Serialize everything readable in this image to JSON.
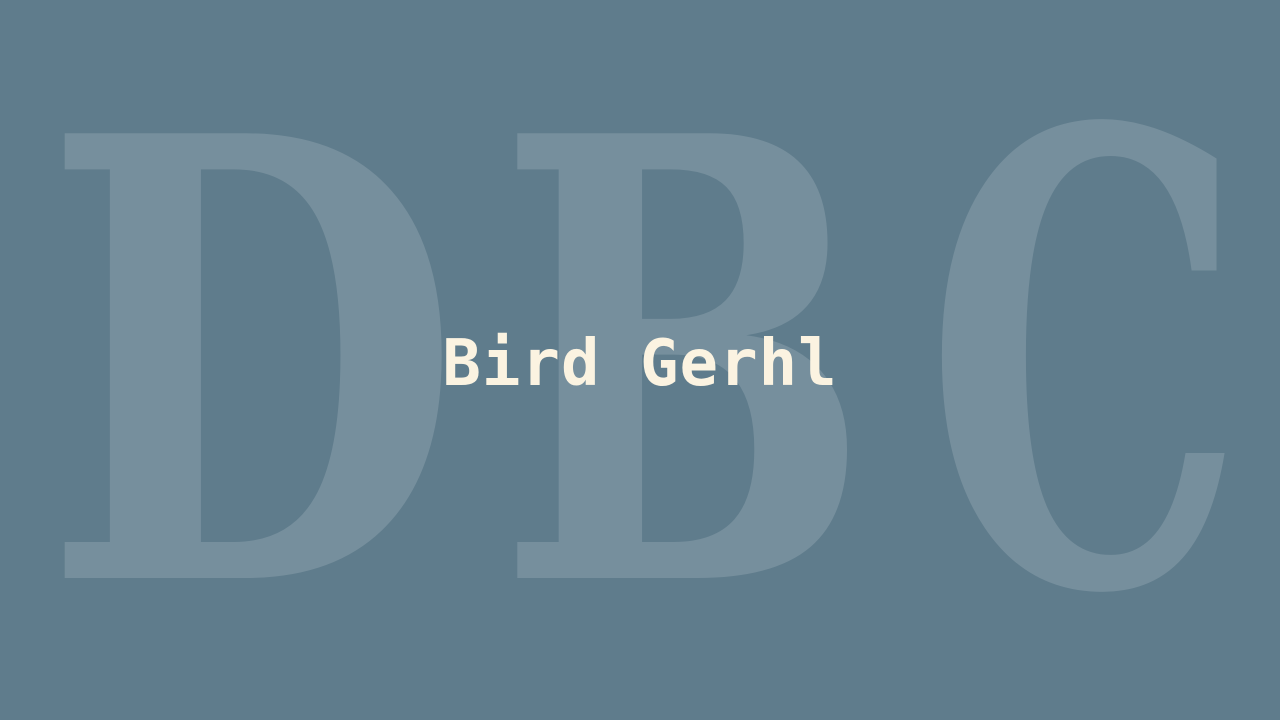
{
  "background_color": "#5f7c8c",
  "watermark": {
    "letters": [
      "D",
      "B",
      "C"
    ],
    "color": "#ffffff",
    "opacity": 0.15
  },
  "title": {
    "text": "Bird Gerhl",
    "color": "#fbf3e1"
  }
}
